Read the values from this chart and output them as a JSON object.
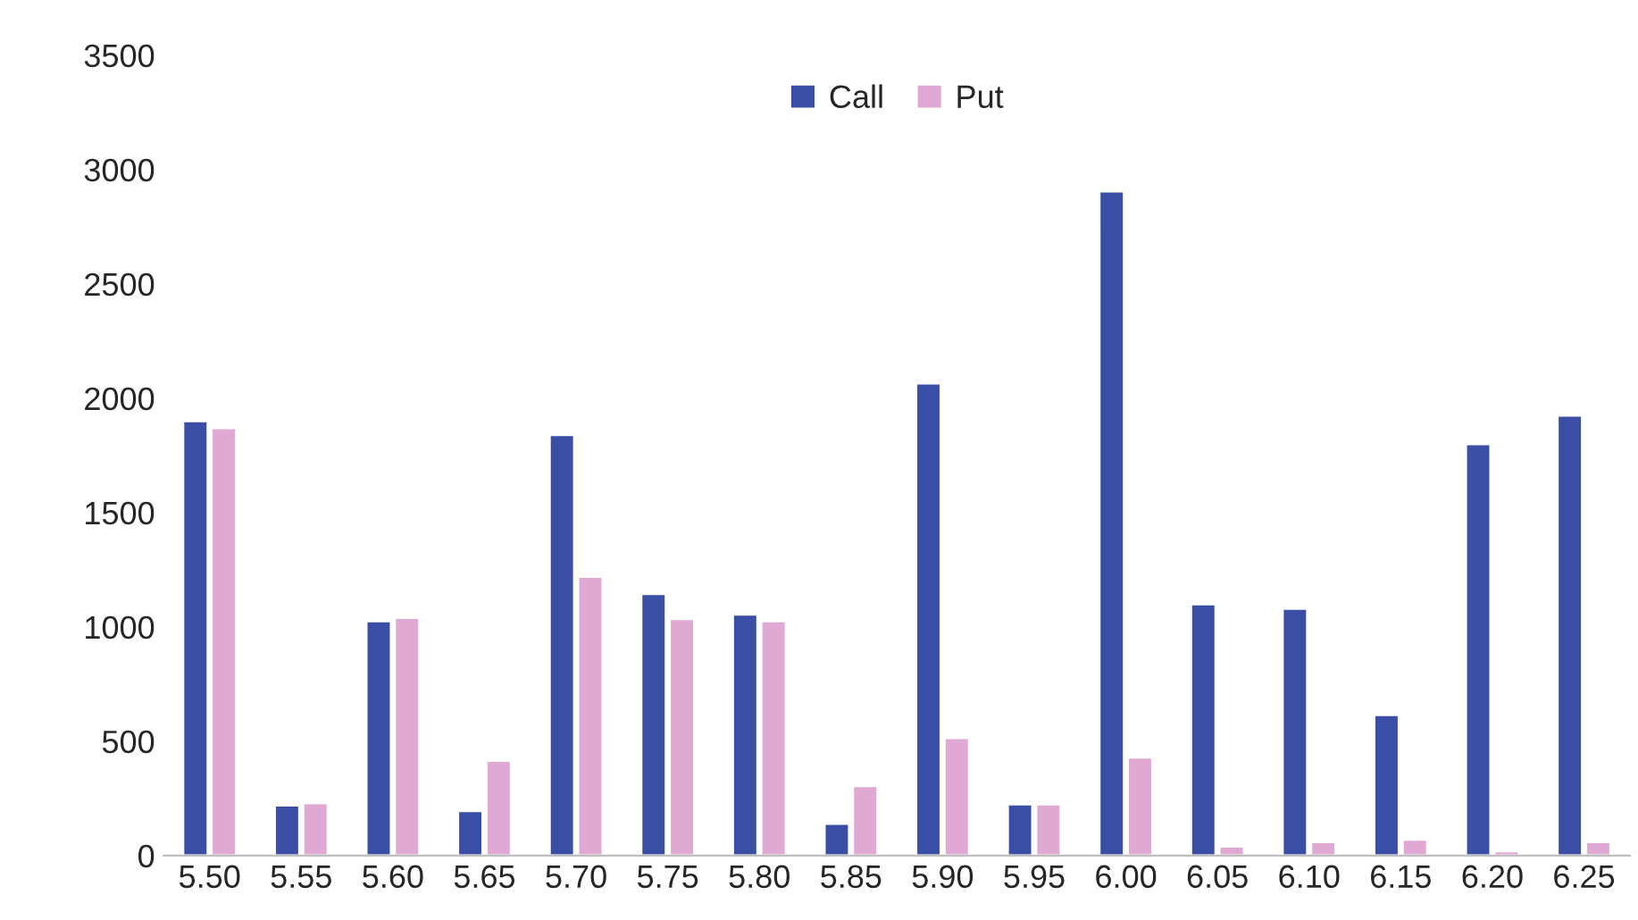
{
  "chart_data": {
    "type": "bar",
    "categories": [
      "5.50",
      "5.55",
      "5.60",
      "5.65",
      "5.70",
      "5.75",
      "5.80",
      "5.85",
      "5.90",
      "5.95",
      "6.00",
      "6.05",
      "6.10",
      "6.15",
      "6.20",
      "6.25"
    ],
    "series": [
      {
        "name": "Call",
        "color": "#3a4ea6",
        "values": [
          1900,
          220,
          1025,
          195,
          1840,
          1145,
          1055,
          140,
          2065,
          225,
          2905,
          1100,
          1080,
          615,
          1800,
          1925
        ]
      },
      {
        "name": "Put",
        "color": "#dfa9d3",
        "values": [
          1870,
          230,
          1040,
          415,
          1220,
          1035,
          1025,
          305,
          515,
          225,
          430,
          40,
          60,
          70,
          20,
          60
        ]
      }
    ],
    "ylim": [
      0,
      3500
    ],
    "yticks": [
      0,
      500,
      1000,
      1500,
      2000,
      2500,
      3000,
      3500
    ],
    "grid": false,
    "legend": "top"
  }
}
